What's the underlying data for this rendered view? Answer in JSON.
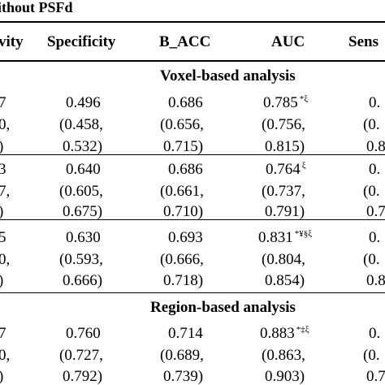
{
  "caption": "ithout PSFd",
  "headers": {
    "sensitivity_left": "vity",
    "specificity": "Specificity",
    "b_acc": "B_ACC",
    "auc": "AUC",
    "sensitivity_right": "Sens"
  },
  "sections": {
    "voxel": "Voxel-based analysis",
    "region": "Region-based analysis"
  },
  "rows": [
    {
      "left": [
        "7",
        "0,",
        ")"
      ],
      "specificity": [
        "0.496",
        "(0.458,",
        "0.532)"
      ],
      "b_acc": [
        "0.686",
        "(0.656,",
        "0.715)"
      ],
      "auc": [
        "0.785",
        "(0.756,",
        "0.815)"
      ],
      "auc_mark": "*ξ",
      "right": [
        "0.",
        "(0.",
        "0.8"
      ]
    },
    {
      "left": [
        "3",
        "7,",
        ")"
      ],
      "specificity": [
        "0.640",
        "(0.605,",
        "0.675)"
      ],
      "b_acc": [
        "0.686",
        "(0.661,",
        "0.710)"
      ],
      "auc": [
        "0.764",
        "(0.737,",
        "0.791)"
      ],
      "auc_mark": "ξ",
      "right": [
        "0.",
        "(0.",
        "0.7"
      ]
    },
    {
      "left": [
        "5",
        "0,",
        ")"
      ],
      "specificity": [
        "0.630",
        "(0.593,",
        "0.666)"
      ],
      "b_acc": [
        "0.693",
        "(0.666,",
        "0.718)"
      ],
      "auc": [
        "0.831",
        "(0.804,",
        "0.854)"
      ],
      "auc_mark": "*¥§ξ",
      "right": [
        "0.",
        "(0.",
        "0.8"
      ]
    },
    {
      "left": [
        "7",
        "0,",
        ")"
      ],
      "specificity": [
        "0.760",
        "(0.727,",
        "0.792)"
      ],
      "b_acc": [
        "0.714",
        "(0.689,",
        "0.739)"
      ],
      "auc": [
        "0.883",
        "(0.863,",
        "0.903)"
      ],
      "auc_mark": "*‡ξ",
      "right": [
        "0.",
        "(0.",
        "0.7"
      ]
    }
  ]
}
